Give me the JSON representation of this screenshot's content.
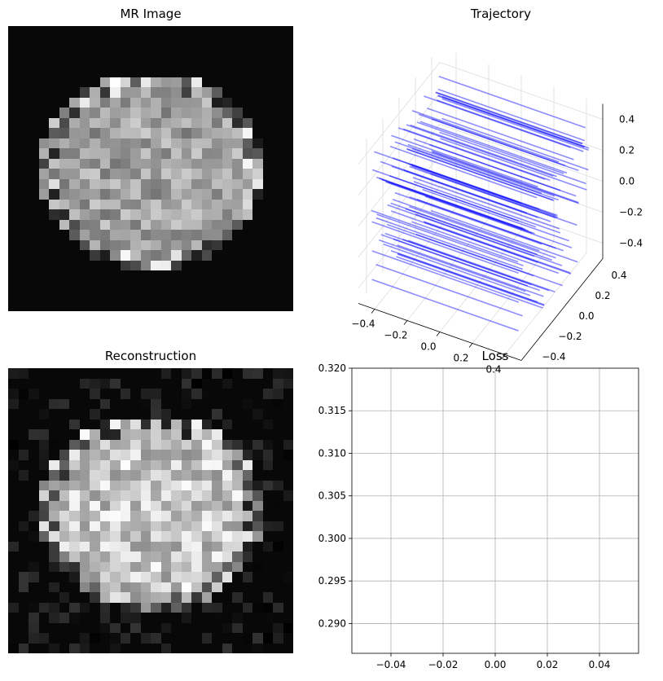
{
  "chart_data": [
    {
      "type": "heatmap",
      "title": "MR Image",
      "colormap": "gray",
      "grid_size": 28,
      "description_of_content": "brain"
    },
    {
      "type": "line3d",
      "title": "Trajectory",
      "color": "#0000ff",
      "x_ticks": [
        "−0.4",
        "−0.2",
        "0.0",
        "0.2",
        "0.4"
      ],
      "y_ticks": [
        "−0.4",
        "−0.2",
        "0.0",
        "0.2",
        "0.4"
      ],
      "z_ticks": [
        "−0.4",
        "−0.2",
        "0.0",
        "0.2",
        "0.4"
      ],
      "xlim": [
        -0.5,
        0.5
      ],
      "ylim": [
        -0.5,
        0.5
      ],
      "zlim": [
        -0.5,
        0.5
      ],
      "grid": true
    },
    {
      "type": "heatmap",
      "title": "Reconstruction",
      "colormap": "gray",
      "grid_size": 28
    },
    {
      "type": "line",
      "title": "Loss",
      "series": [],
      "xlim": [
        -0.055,
        0.055
      ],
      "ylim": [
        0.2865,
        0.32
      ],
      "x_ticks": [
        "−0.04",
        "−0.02",
        "0.00",
        "0.02",
        "0.04"
      ],
      "x_tick_values": [
        -0.04,
        -0.02,
        0.0,
        0.02,
        0.04
      ],
      "y_ticks": [
        "0.290",
        "0.295",
        "0.300",
        "0.305",
        "0.310",
        "0.315",
        "0.320"
      ],
      "y_tick_values": [
        0.29,
        0.295,
        0.3,
        0.305,
        0.31,
        0.315,
        0.32
      ],
      "grid": true
    }
  ]
}
